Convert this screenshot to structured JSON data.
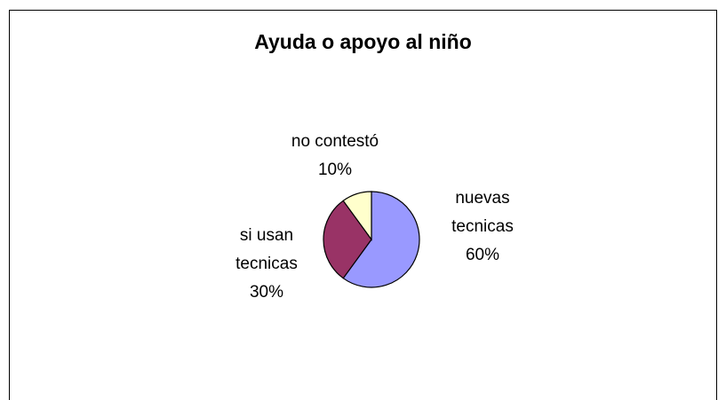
{
  "chart_data": {
    "type": "pie",
    "title": "Ayuda o apoyo al niño",
    "slices": [
      {
        "label_lines": [
          "nuevas",
          "tecnicas",
          "60%"
        ],
        "value": 60,
        "color": "#9999ff"
      },
      {
        "label_lines": [
          "si usan",
          "tecnicas",
          "30%"
        ],
        "value": 30,
        "color": "#993366"
      },
      {
        "label_lines": [
          "no contestó",
          "10%"
        ],
        "value": 10,
        "color": "#ffffcc"
      }
    ],
    "start_angle_deg": 0,
    "direction": "clockwise"
  }
}
